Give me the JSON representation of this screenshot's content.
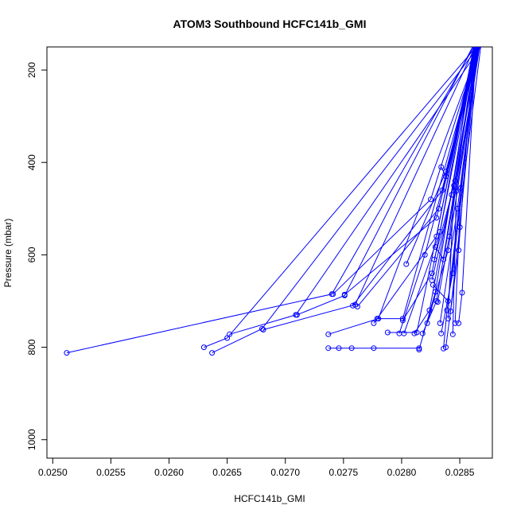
{
  "chart_data": {
    "type": "line",
    "title": "ATOM3 Southbound HCFC141b_GMI",
    "xlabel": "HCFC141b_GMI",
    "ylabel": "Pressure (mbar)",
    "xlim": [
      0.02495,
      0.02878
    ],
    "ylim": [
      1040,
      150
    ],
    "y_reversed": true,
    "x_ticks": [
      0.025,
      0.0255,
      0.026,
      0.0265,
      0.027,
      0.0275,
      0.028,
      0.0285
    ],
    "x_tick_labels": [
      "0.0250",
      "0.0255",
      "0.0260",
      "0.0265",
      "0.0270",
      "0.0275",
      "0.0280",
      "0.0285"
    ],
    "y_ticks": [
      200,
      400,
      600,
      800,
      1000
    ],
    "y_tick_labels": [
      "200",
      "400",
      "600",
      "800",
      "1000"
    ],
    "grid": false,
    "colors": {
      "series": "#0000ff",
      "axis": "#000000"
    },
    "series": [
      {
        "marker": "open-circle",
        "line": true,
        "profiles": [
          {
            "x": [
              0.02512,
              0.0274,
              0.02862
            ],
            "y": [
              812,
              685,
              150
            ]
          },
          {
            "x": [
              0.0263,
              0.0265,
              0.02864
            ],
            "y": [
              800,
              780,
              150
            ]
          },
          {
            "x": [
              0.02637,
              0.0268,
              0.02866
            ],
            "y": [
              812,
              760,
              150
            ]
          },
          {
            "x": [
              0.02652,
              0.02709,
              0.02868
            ],
            "y": [
              772,
              730,
              150
            ]
          },
          {
            "x": [
              0.02681,
              0.0276,
              0.02863
            ],
            "y": [
              762,
              708,
              150
            ]
          },
          {
            "x": [
              0.0271,
              0.02751,
              0.02861
            ],
            "y": [
              730,
              688,
              150
            ]
          },
          {
            "x": [
              0.02737,
              0.02746,
              0.02757,
              0.02776,
              0.02815
            ],
            "y": [
              802,
              802,
              802,
              802,
              802
            ]
          },
          {
            "x": [
              0.02737,
              0.0278,
              0.02867
            ],
            "y": [
              772,
              738,
              150
            ]
          },
          {
            "x": [
              0.02741,
              0.02825,
              0.02866
            ],
            "y": [
              685,
              480,
              150
            ]
          },
          {
            "x": [
              0.02751,
              0.0283,
              0.02865
            ],
            "y": [
              686,
              520,
              150
            ]
          },
          {
            "x": [
              0.02758,
              0.02835,
              0.02864
            ],
            "y": [
              710,
              460,
              150
            ]
          },
          {
            "x": [
              0.02762,
              0.02832,
              0.02866
            ],
            "y": [
              712,
              500,
              150
            ]
          },
          {
            "x": [
              0.02776,
              0.0283,
              0.02862
            ],
            "y": [
              748,
              560,
              150
            ]
          },
          {
            "x": [
              0.02779,
              0.02801,
              0.02866
            ],
            "y": [
              738,
              738,
              150
            ]
          },
          {
            "x": [
              0.02788,
              0.02813,
              0.02863
            ],
            "y": [
              768,
              768,
              150
            ]
          },
          {
            "x": [
              0.02798,
              0.0282,
              0.02867
            ],
            "y": [
              770,
              600,
              150
            ]
          },
          {
            "x": [
              0.02801,
              0.02826,
              0.02864
            ],
            "y": [
              742,
              640,
              150
            ]
          },
          {
            "x": [
              0.02802,
              0.02833,
              0.02862
            ],
            "y": [
              770,
              550,
              150
            ]
          },
          {
            "x": [
              0.02804,
              0.02838,
              0.02866
            ],
            "y": [
              620,
              420,
              150
            ]
          },
          {
            "x": [
              0.02811,
              0.02824,
              0.02866
            ],
            "y": [
              770,
              720,
              150
            ]
          },
          {
            "x": [
              0.02815,
              0.02829,
              0.02863
            ],
            "y": [
              805,
              680,
              150
            ]
          },
          {
            "x": [
              0.02818,
              0.0283,
              0.02865
            ],
            "y": [
              770,
              700,
              150
            ]
          },
          {
            "x": [
              0.02822,
              0.0284,
              0.02867
            ],
            "y": [
              748,
              590,
              150
            ]
          },
          {
            "x": [
              0.02826,
              0.02843,
              0.02862
            ],
            "y": [
              655,
              470,
              150
            ]
          },
          {
            "x": [
              0.02828,
              0.02846,
              0.02865
            ],
            "y": [
              610,
              440,
              150
            ]
          },
          {
            "x": [
              0.02831,
              0.02841,
              0.02863
            ],
            "y": [
              702,
              560,
              150
            ]
          },
          {
            "x": [
              0.02833,
              0.02848,
              0.02866
            ],
            "y": [
              748,
              500,
              150
            ]
          },
          {
            "x": [
              0.02834,
              0.02844,
              0.02864
            ],
            "y": [
              770,
              640,
              150
            ]
          },
          {
            "x": [
              0.02836,
              0.02839,
              0.02868
            ],
            "y": [
              803,
              720,
              150
            ]
          },
          {
            "x": [
              0.02838,
              0.02849,
              0.02862
            ],
            "y": [
              800,
              590,
              150
            ]
          },
          {
            "x": [
              0.0284,
              0.02845,
              0.02866
            ],
            "y": [
              738,
              450,
              150
            ]
          },
          {
            "x": [
              0.02842,
              0.0285,
              0.02865
            ],
            "y": [
              722,
              540,
              150
            ]
          },
          {
            "x": [
              0.02844,
              0.02847,
              0.02867
            ],
            "y": [
              772,
              462,
              150
            ]
          },
          {
            "x": [
              0.02846,
              0.02851,
              0.02866
            ],
            "y": [
              748,
              455,
              150
            ]
          },
          {
            "x": [
              0.02849,
              0.02852,
              0.02864
            ],
            "y": [
              748,
              682,
              150
            ]
          },
          {
            "x": [
              0.02834,
              0.02838,
              0.02863
            ],
            "y": [
              410,
              430,
              150
            ]
          },
          {
            "x": [
              0.02829,
              0.02836,
              0.02867
            ],
            "y": [
              583,
              610,
              150
            ]
          },
          {
            "x": [
              0.02827,
              0.0284,
              0.02865
            ],
            "y": [
              665,
              700,
              150
            ]
          }
        ]
      }
    ]
  }
}
